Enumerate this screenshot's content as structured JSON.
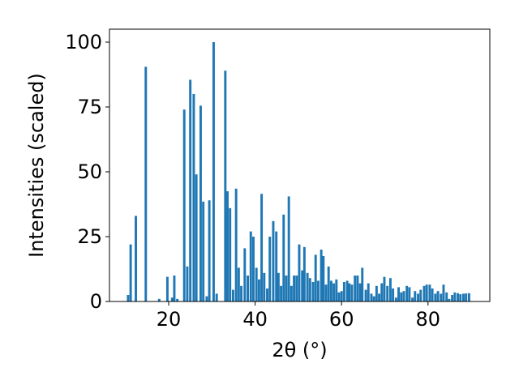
{
  "chart_data": {
    "type": "bar",
    "xlabel": "2θ (°)",
    "ylabel": "Intensities (scaled)",
    "xlim": [
      6.3,
      94.3
    ],
    "ylim": [
      0,
      105
    ],
    "xticks": [
      20,
      40,
      60,
      80
    ],
    "yticks": [
      0,
      25,
      50,
      75,
      100
    ],
    "grid": false,
    "bar_color": "#1f77b4",
    "bar_width_deg": 0.55,
    "x": [
      10.6,
      11.2,
      12.4,
      14.7,
      17.8,
      19.7,
      20.8,
      21.3,
      22.0,
      23.6,
      24.3,
      25.0,
      25.8,
      26.4,
      27.4,
      28.0,
      28.8,
      29.4,
      30.4,
      31.1,
      33.1,
      33.6,
      34.2,
      34.9,
      35.6,
      36.2,
      36.8,
      37.6,
      38.3,
      39.0,
      39.6,
      40.3,
      40.9,
      41.5,
      42.1,
      42.8,
      43.4,
      44.2,
      44.9,
      45.4,
      46.0,
      46.6,
      47.2,
      47.8,
      48.4,
      49.0,
      49.6,
      50.2,
      50.9,
      51.4,
      52.1,
      52.7,
      53.4,
      54.0,
      54.6,
      55.3,
      55.8,
      56.4,
      57.0,
      57.6,
      58.2,
      58.8,
      59.4,
      60.0,
      60.6,
      61.3,
      61.8,
      62.4,
      63.1,
      63.7,
      64.3,
      64.8,
      65.6,
      66.2,
      66.9,
      67.5,
      68.1,
      68.7,
      69.3,
      69.9,
      70.6,
      71.3,
      71.9,
      72.6,
      73.2,
      73.8,
      74.4,
      75.1,
      75.7,
      76.4,
      77.0,
      77.7,
      78.3,
      79.1,
      79.7,
      80.4,
      81.0,
      81.7,
      82.3,
      83.0,
      83.6,
      84.3,
      84.9,
      85.6,
      86.2,
      86.9,
      87.5,
      88.2,
      88.8,
      89.5
    ],
    "values": [
      2.5,
      22,
      33,
      90.5,
      1,
      9.5,
      1.5,
      10,
      1,
      74,
      13.5,
      85.5,
      80,
      49,
      75.5,
      38.5,
      2,
      39,
      100,
      3,
      89,
      42.5,
      36,
      4.5,
      43.5,
      13,
      6,
      20.5,
      10,
      27,
      25,
      13,
      8.5,
      41.5,
      11,
      5,
      25,
      31,
      27,
      11,
      6,
      33.5,
      10,
      40.5,
      6,
      10,
      10,
      22,
      12,
      21,
      11,
      9,
      7.5,
      18,
      8,
      20,
      17.5,
      6.5,
      13.5,
      8,
      7,
      8.5,
      3.5,
      4,
      7.5,
      8,
      7,
      6.5,
      10,
      10,
      7,
      13,
      4.5,
      7,
      3,
      2,
      6,
      3,
      7,
      9.5,
      6,
      9,
      5,
      1.5,
      5.5,
      3.5,
      4,
      6,
      5.5,
      1.5,
      4,
      3,
      4.5,
      6,
      6.5,
      6.5,
      5,
      3,
      4,
      3,
      6.5,
      3.5,
      1,
      2.5,
      3.5,
      3.2,
      2.8,
      3,
      3.1,
      3.2
    ]
  }
}
